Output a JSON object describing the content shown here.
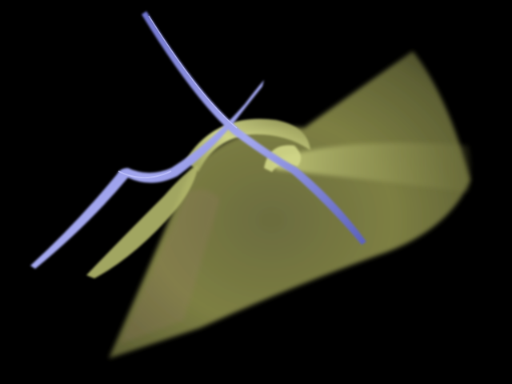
{
  "scene": {
    "subject": "abstract-3d-surface-render",
    "background_color": "#000000",
    "palette": {
      "surface_olive": "#7d7f43",
      "surface_highlight": "#c9cf7e",
      "surface_shadow": "#3d3f22",
      "surface_pink_tint": "#a07a72",
      "ribbon_blue": "#8f93e6",
      "ribbon_highlight": "#c8caff",
      "ribbon_shadow": "#4e52a8"
    }
  }
}
